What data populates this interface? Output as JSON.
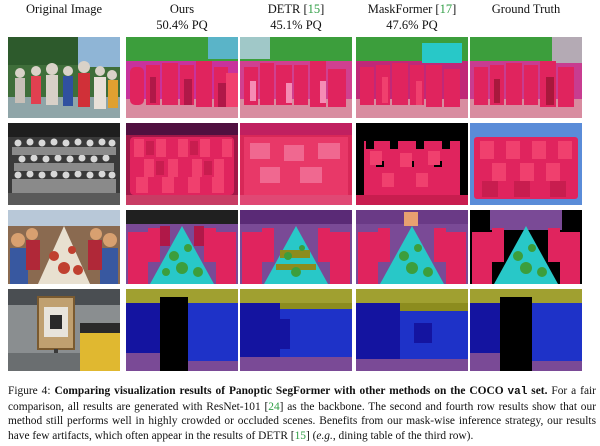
{
  "figure": {
    "columns": [
      {
        "id": "original",
        "title": "Original Image",
        "cite": "",
        "pq": ""
      },
      {
        "id": "ours",
        "title": "Ours",
        "cite": "",
        "pq": "50.4% PQ"
      },
      {
        "id": "detr",
        "title": "DETR [",
        "cite": "15",
        "close": "]",
        "pq": "45.1% PQ"
      },
      {
        "id": "maskformer",
        "title": "MaskFormer [",
        "cite": "17",
        "close": "]",
        "pq": "47.6% PQ"
      },
      {
        "id": "gt",
        "title": "Ground Truth",
        "cite": "",
        "pq": ""
      }
    ],
    "rows": [
      {
        "id": "row-1",
        "scene": "children-outdoor-group"
      },
      {
        "id": "row-2",
        "scene": "school-class-photo-bw"
      },
      {
        "id": "row-3",
        "scene": "dining-table-group"
      },
      {
        "id": "row-4",
        "scene": "street-sign-taxi"
      }
    ],
    "colors": {
      "person_a": "#e0245e",
      "person_b": "#c81d4f",
      "person_c": "#f0406e",
      "sky_green": "#3c9e3c",
      "olive": "#8c8c1e",
      "navy": "#1414a0",
      "blue": "#1e32c8",
      "black": "#000000",
      "purple": "#7a4a96",
      "cyan": "#28c8c8",
      "teal": "#5ab4c8",
      "pink_bg": "#d88ca0"
    }
  },
  "caption": {
    "label": "Figure 4:",
    "bold": "Comparing visualization results of Panoptic SegFormer with other methods on the COCO",
    "code": "val",
    "bold_end": "set.",
    "t1": "For a fair comparison, all results are generated with ResNet-101 [",
    "c1": "24",
    "t2": "] as the backbone. The second and fourth row results show that our method still performs well in highly crowded or occluded scenes. Benefits from our mask-wise inference strategy, our results have few artifacts, which often appear in the results of DETR [",
    "c2": "15",
    "t3": "] (",
    "eg": "e.g.",
    "t4": ", dining table of the third row)."
  }
}
